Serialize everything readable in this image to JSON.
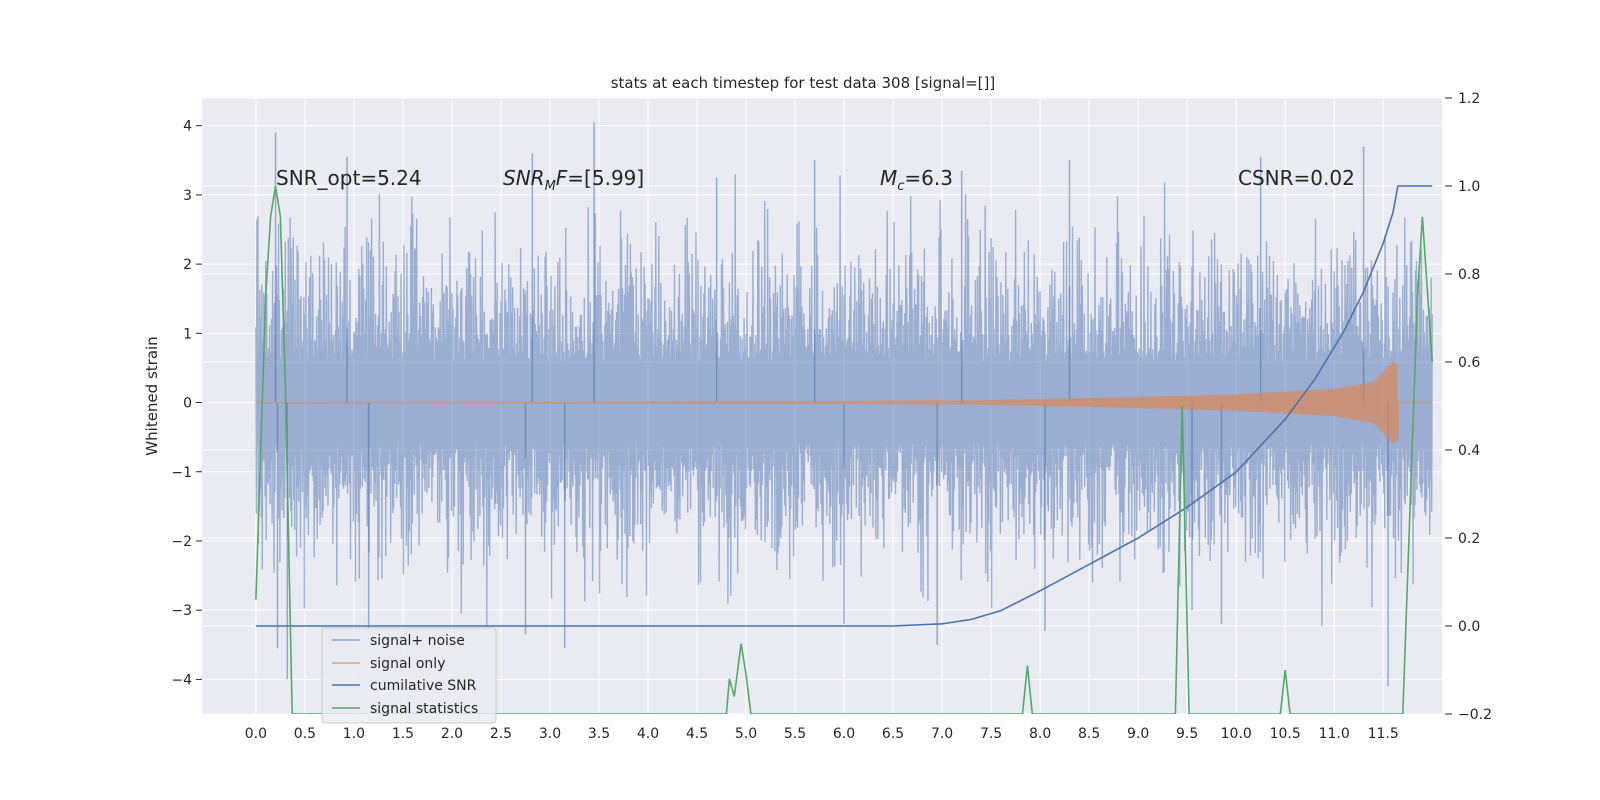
{
  "chart_data": {
    "type": "line",
    "title": "stats at each timestep for test data 308 [signal=[]]",
    "ylabel": "Whitened strain",
    "xlim": [
      -0.55,
      12.1
    ],
    "ylim": [
      -4.5,
      4.4
    ],
    "y2lim": [
      -0.2,
      1.2
    ],
    "grid": true,
    "legend_position": "lower-left",
    "x_ticks": [
      "0.0",
      "0.5",
      "1.0",
      "1.5",
      "2.0",
      "2.5",
      "3.0",
      "3.5",
      "4.0",
      "4.5",
      "5.0",
      "5.5",
      "6.0",
      "6.5",
      "7.0",
      "7.5",
      "8.0",
      "8.5",
      "9.0",
      "9.5",
      "10.0",
      "10.5",
      "11.0",
      "11.5"
    ],
    "y_ticks": [
      "4",
      "3",
      "2",
      "1",
      "0",
      "−1",
      "−2",
      "−3",
      "−4"
    ],
    "y_tick_values": [
      4,
      3,
      2,
      1,
      0,
      -1,
      -2,
      -3,
      -4
    ],
    "y2_ticks": [
      "1.2",
      "1.0",
      "0.8",
      "0.6",
      "0.4",
      "0.2",
      "0.0",
      "−0.2"
    ],
    "y2_tick_values": [
      1.2,
      1.0,
      0.8,
      0.6,
      0.4,
      0.2,
      0.0,
      -0.2
    ],
    "annotations": {
      "snr_opt": "SNR_opt=5.24",
      "snr_mf_main": "SNR",
      "snr_mf_sub": "M",
      "snr_mf_f": "F",
      "snr_mf_val": "=[5.99]",
      "mc_main": "M",
      "mc_sub": "c",
      "mc_val": "=6.3",
      "csnr": "CSNR=0.02"
    },
    "series": [
      {
        "name": "signal+ noise",
        "color": "#4c72b0",
        "axis": "left",
        "x_range": [
          0.0,
          12.0
        ],
        "envelope": [
          1.95,
          2.3
        ],
        "peaks": [
          [
            0.2,
            3.9
          ],
          [
            0.22,
            -3.55
          ],
          [
            0.32,
            -4.0
          ],
          [
            0.93,
            3.55
          ],
          [
            1.15,
            -3.25
          ],
          [
            2.82,
            3.6
          ],
          [
            3.15,
            -3.55
          ],
          [
            3.45,
            4.05
          ],
          [
            2.75,
            -3.35
          ],
          [
            4.7,
            3.25
          ],
          [
            5.7,
            3.5
          ],
          [
            6.0,
            -3.2
          ],
          [
            6.95,
            -3.5
          ],
          [
            7.2,
            3.35
          ],
          [
            8.3,
            3.5
          ],
          [
            8.05,
            -3.3
          ],
          [
            10.25,
            3.55
          ],
          [
            11.3,
            3.7
          ],
          [
            11.55,
            -4.1
          ],
          [
            9.85,
            -3.2
          ],
          [
            9.55,
            -3.0
          ]
        ]
      },
      {
        "name": "signal only",
        "color": "#dd8452",
        "axis": "left",
        "x_range": [
          0.0,
          12.0
        ],
        "merger_x": 11.65,
        "amplitude_points": [
          [
            0.0,
            0.0
          ],
          [
            6.0,
            0.01
          ],
          [
            7.0,
            0.02
          ],
          [
            8.0,
            0.05
          ],
          [
            9.0,
            0.08
          ],
          [
            10.0,
            0.12
          ],
          [
            10.5,
            0.16
          ],
          [
            11.0,
            0.2
          ],
          [
            11.4,
            0.3
          ],
          [
            11.6,
            0.6
          ],
          [
            11.65,
            0.55
          ]
        ]
      },
      {
        "name": "cumilative SNR",
        "color": "#4c72b0",
        "axis": "right",
        "points": [
          [
            0.0,
            0.0
          ],
          [
            6.5,
            0.0
          ],
          [
            7.0,
            0.005
          ],
          [
            7.3,
            0.015
          ],
          [
            7.6,
            0.035
          ],
          [
            8.0,
            0.08
          ],
          [
            8.5,
            0.14
          ],
          [
            9.0,
            0.2
          ],
          [
            9.5,
            0.27
          ],
          [
            10.0,
            0.35
          ],
          [
            10.5,
            0.47
          ],
          [
            10.8,
            0.56
          ],
          [
            11.1,
            0.67
          ],
          [
            11.3,
            0.76
          ],
          [
            11.5,
            0.87
          ],
          [
            11.6,
            0.94
          ],
          [
            11.65,
            1.0
          ],
          [
            12.0,
            1.0
          ]
        ]
      },
      {
        "name": "signal statistics",
        "color": "#55a868",
        "axis": "right",
        "points": [
          [
            0.0,
            0.06
          ],
          [
            0.1,
            0.75
          ],
          [
            0.15,
            0.93
          ],
          [
            0.2,
            1.0
          ],
          [
            0.25,
            0.93
          ],
          [
            0.3,
            0.55
          ],
          [
            0.37,
            -0.2
          ],
          [
            4.8,
            -0.2
          ],
          [
            4.83,
            -0.12
          ],
          [
            4.88,
            -0.16
          ],
          [
            4.95,
            -0.04
          ],
          [
            5.0,
            -0.11
          ],
          [
            5.05,
            -0.2
          ],
          [
            7.82,
            -0.2
          ],
          [
            7.87,
            -0.09
          ],
          [
            7.92,
            -0.2
          ],
          [
            9.38,
            -0.2
          ],
          [
            9.45,
            0.5
          ],
          [
            9.52,
            -0.2
          ],
          [
            10.45,
            -0.2
          ],
          [
            10.5,
            -0.1
          ],
          [
            10.55,
            -0.2
          ],
          [
            11.7,
            -0.2
          ],
          [
            11.85,
            0.75
          ],
          [
            11.9,
            0.93
          ],
          [
            12.0,
            0.6
          ]
        ]
      }
    ]
  },
  "colors": {
    "plot_bg": "#eaeaf2",
    "grid": "#ffffff",
    "text": "#262626"
  }
}
